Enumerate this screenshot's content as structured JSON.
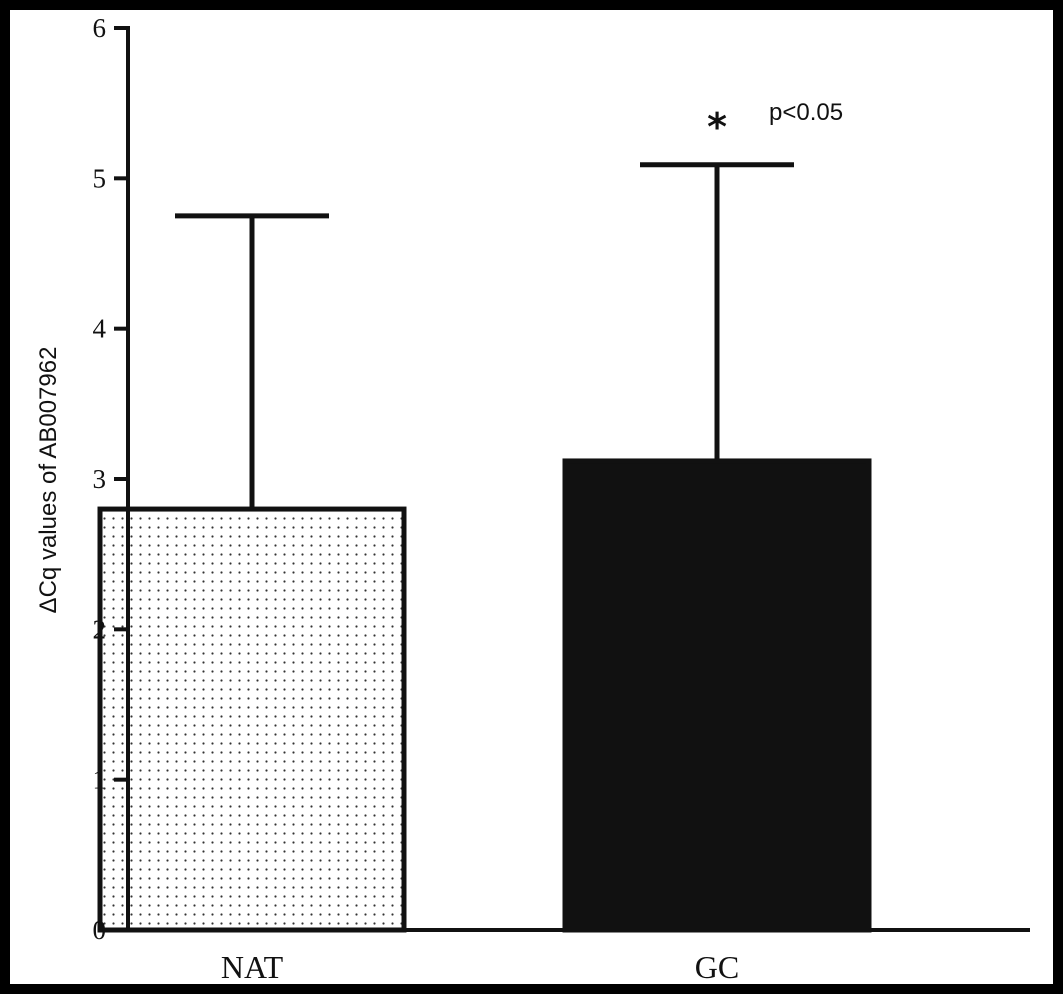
{
  "chart_data": {
    "type": "bar",
    "title": "",
    "xlabel": "",
    "ylabel": "ΔCq values of AB007962",
    "ylim": [
      0,
      6
    ],
    "yticks": [
      0,
      1,
      2,
      3,
      4,
      5,
      6
    ],
    "categories": [
      "NAT",
      "GC"
    ],
    "values": [
      2.8,
      3.12
    ],
    "error_upper": [
      4.75,
      5.09
    ],
    "bar_fills": [
      "dotted",
      "solid"
    ],
    "grid": false,
    "legend": "none",
    "annotations": [
      {
        "category": "GC",
        "symbol": "*",
        "text": "p<0.05"
      }
    ]
  },
  "colors": {
    "frame": "#000000",
    "background": "#ffffff",
    "ink": "#111111"
  }
}
